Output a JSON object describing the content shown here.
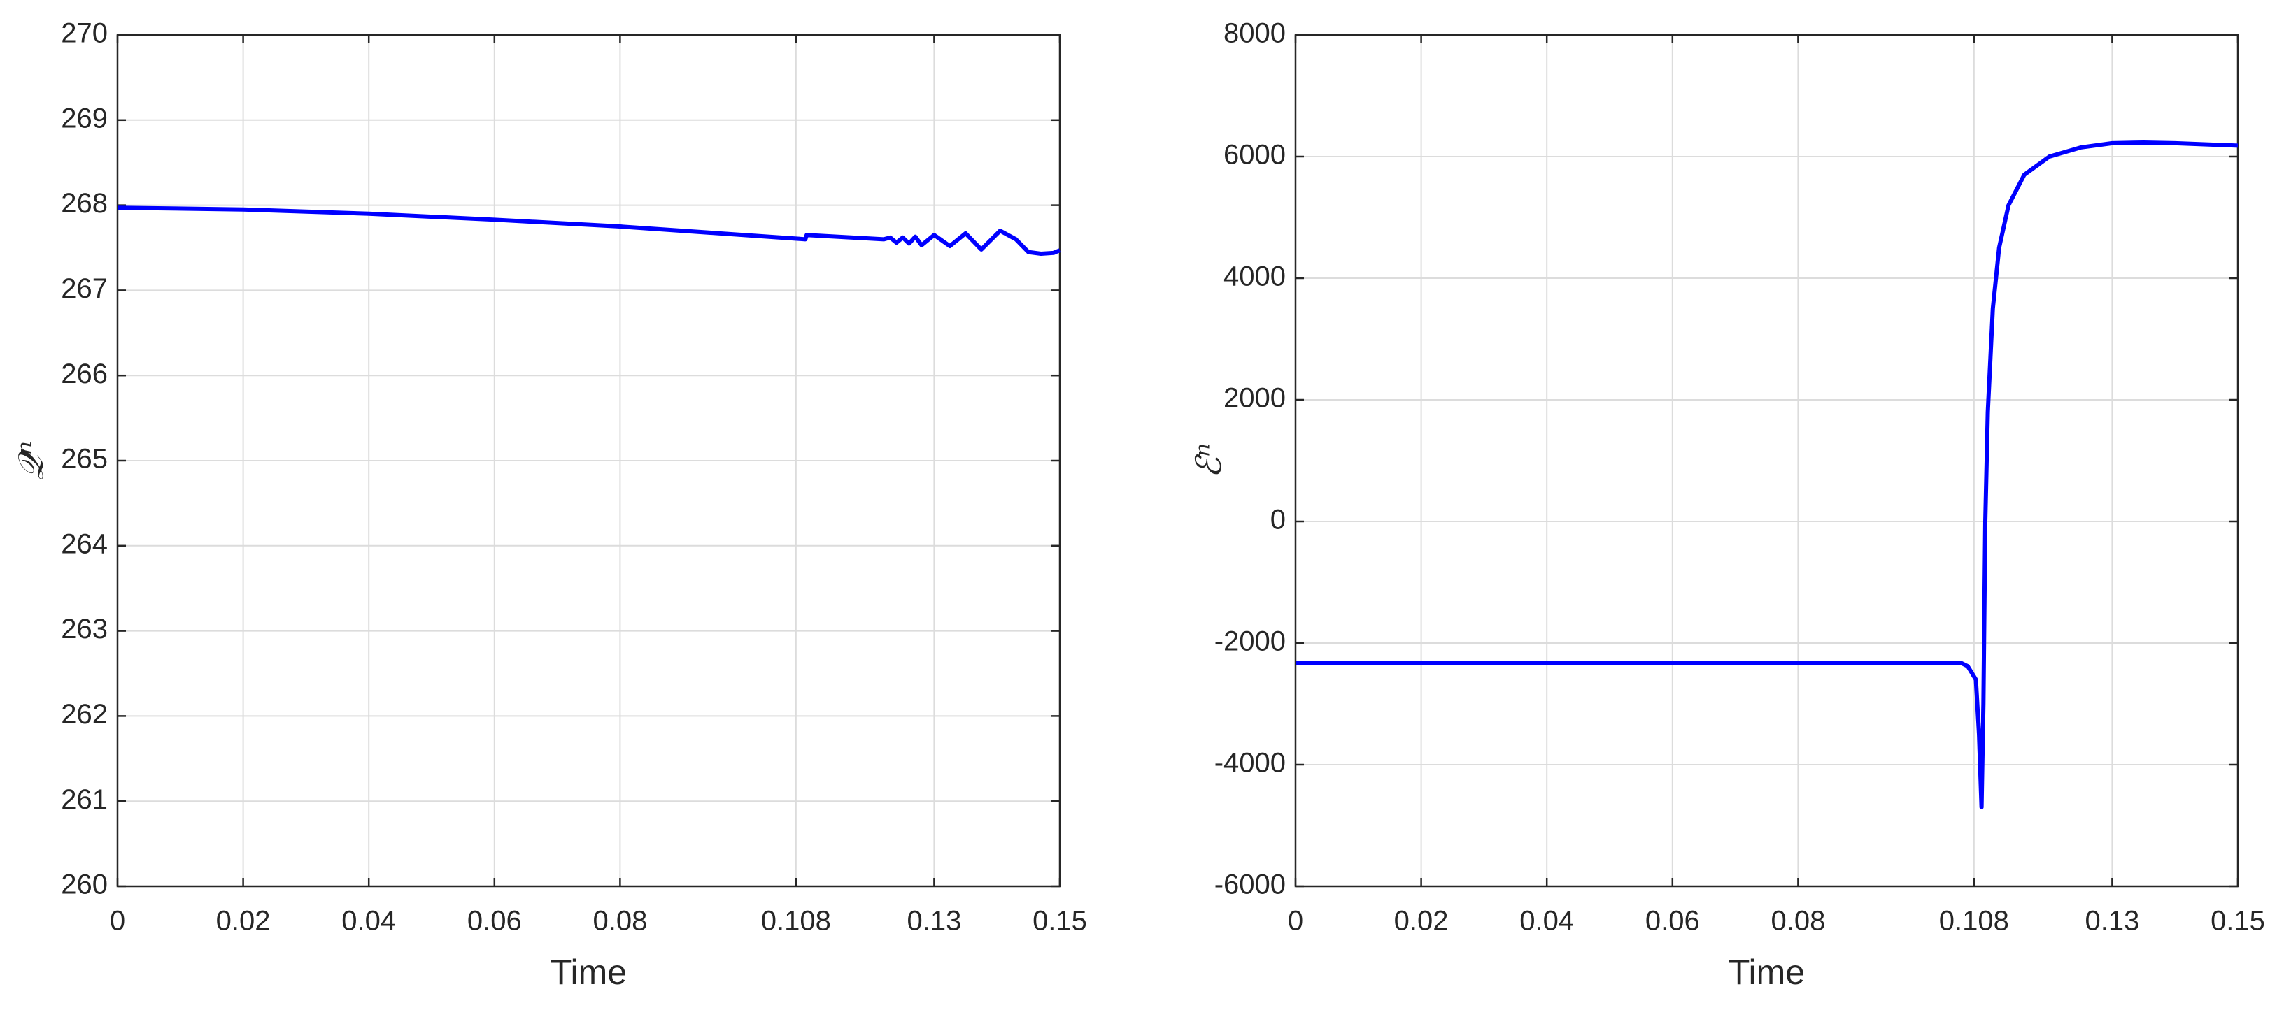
{
  "chart_data": [
    {
      "type": "line",
      "xlabel": "Time",
      "ylabel": "𝒬ⁿ",
      "xlim": [
        0,
        0.15
      ],
      "xticks": [
        0,
        0.02,
        0.04,
        0.06,
        0.08,
        0.108,
        0.13,
        0.15
      ],
      "ylim": [
        260,
        270
      ],
      "yticks": [
        260,
        261,
        262,
        263,
        264,
        265,
        266,
        267,
        268,
        269,
        270
      ],
      "grid": true,
      "series": [
        {
          "color": "#0000ff",
          "x": [
            0,
            0.02,
            0.04,
            0.06,
            0.08,
            0.1095,
            0.1097,
            0.122,
            0.123,
            0.124,
            0.125,
            0.126,
            0.127,
            0.128,
            0.13,
            0.1325,
            0.135,
            0.1375,
            0.1405,
            0.143,
            0.145,
            0.147,
            0.149,
            0.15
          ],
          "values": [
            267.97,
            267.95,
            267.9,
            267.83,
            267.75,
            267.6,
            267.65,
            267.6,
            267.62,
            267.56,
            267.62,
            267.55,
            267.63,
            267.53,
            267.65,
            267.52,
            267.67,
            267.48,
            267.7,
            267.6,
            267.45,
            267.43,
            267.44,
            267.47
          ]
        }
      ]
    },
    {
      "type": "line",
      "xlabel": "Time",
      "ylabel": "ℰⁿ",
      "xlim": [
        0,
        0.15
      ],
      "xticks": [
        0,
        0.02,
        0.04,
        0.06,
        0.08,
        0.108,
        0.13,
        0.15
      ],
      "ylim": [
        -6000,
        8000
      ],
      "yticks": [
        -6000,
        -4000,
        -2000,
        0,
        2000,
        4000,
        6000,
        8000
      ],
      "grid": true,
      "series": [
        {
          "color": "#0000ff",
          "x": [
            0,
            0.04,
            0.08,
            0.106,
            0.107,
            0.1083,
            0.1088,
            0.1092,
            0.1095,
            0.1098,
            0.1102,
            0.111,
            0.112,
            0.1135,
            0.116,
            0.12,
            0.125,
            0.13,
            0.135,
            0.14,
            0.145,
            0.15
          ],
          "values": [
            -2330,
            -2330,
            -2330,
            -2330,
            -2380,
            -2600,
            -3500,
            -4700,
            -3000,
            0,
            1800,
            3500,
            4500,
            5200,
            5700,
            6000,
            6150,
            6220,
            6230,
            6220,
            6200,
            6180
          ]
        }
      ]
    }
  ]
}
